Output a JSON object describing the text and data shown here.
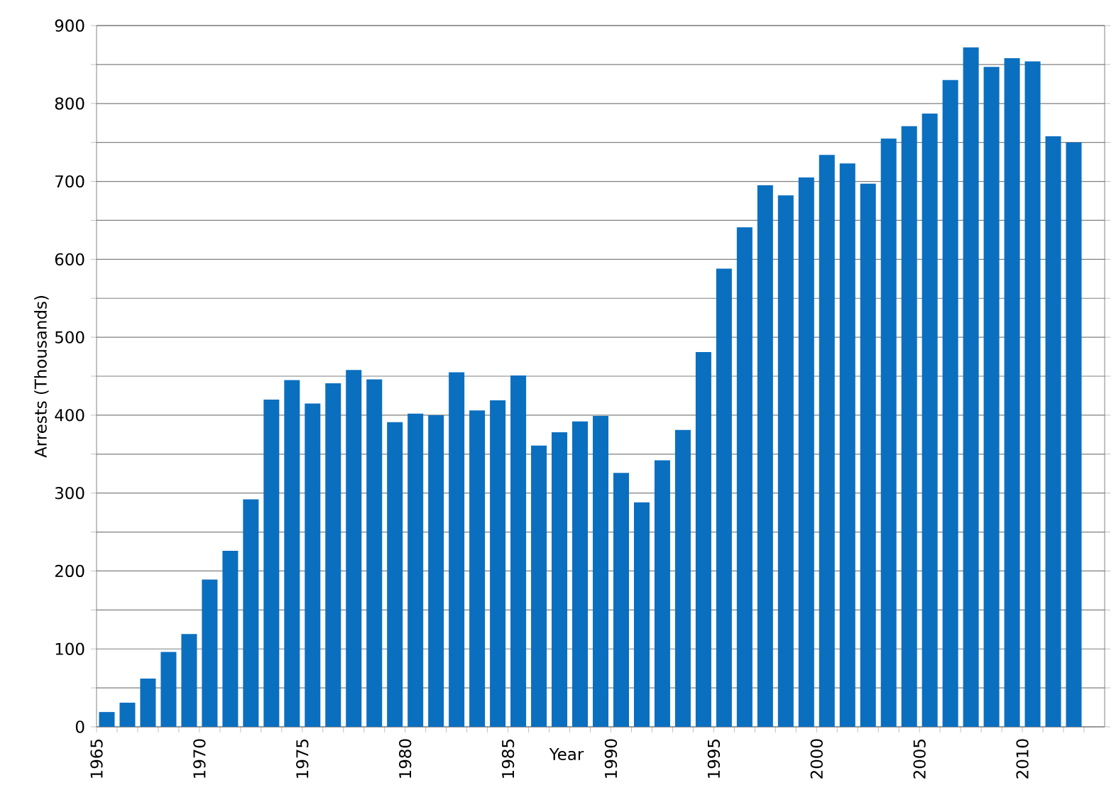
{
  "chart_data": {
    "type": "bar",
    "xlabel": "Year",
    "ylabel": "Arrests (Thousands)",
    "color": "#0b6fc0",
    "x": [
      1965,
      1966,
      1967,
      1968,
      1969,
      1970,
      1971,
      1972,
      1973,
      1974,
      1975,
      1976,
      1977,
      1978,
      1979,
      1980,
      1981,
      1982,
      1983,
      1984,
      1985,
      1986,
      1987,
      1988,
      1989,
      1990,
      1991,
      1992,
      1993,
      1994,
      1995,
      1996,
      1997,
      1998,
      1999,
      2000,
      2001,
      2002,
      2003,
      2004,
      2005,
      2006,
      2007,
      2008,
      2009,
      2010,
      2011,
      2012
    ],
    "values": [
      19,
      31,
      62,
      96,
      119,
      189,
      226,
      292,
      420,
      445,
      415,
      441,
      458,
      446,
      391,
      402,
      400,
      455,
      406,
      419,
      451,
      361,
      378,
      392,
      399,
      326,
      288,
      342,
      381,
      481,
      588,
      641,
      695,
      682,
      705,
      734,
      723,
      697,
      755,
      771,
      787,
      830,
      872,
      847,
      858,
      854,
      758,
      750
    ],
    "xlim": [
      1964.5,
      2013.5
    ],
    "xticks": [
      {
        "value": 1964.5,
        "label": "1965"
      },
      {
        "value": 1965.5,
        "label": null
      },
      {
        "value": 1966.5,
        "label": null
      },
      {
        "value": 1967.5,
        "label": null
      },
      {
        "value": 1968.5,
        "label": null
      },
      {
        "value": 1969.5,
        "label": "1970"
      },
      {
        "value": 1970.5,
        "label": null
      },
      {
        "value": 1971.5,
        "label": null
      },
      {
        "value": 1972.5,
        "label": null
      },
      {
        "value": 1973.5,
        "label": null
      },
      {
        "value": 1974.5,
        "label": "1975"
      },
      {
        "value": 1975.5,
        "label": null
      },
      {
        "value": 1976.5,
        "label": null
      },
      {
        "value": 1977.5,
        "label": null
      },
      {
        "value": 1978.5,
        "label": null
      },
      {
        "value": 1979.5,
        "label": "1980"
      },
      {
        "value": 1980.5,
        "label": null
      },
      {
        "value": 1981.5,
        "label": null
      },
      {
        "value": 1982.5,
        "label": null
      },
      {
        "value": 1983.5,
        "label": null
      },
      {
        "value": 1984.5,
        "label": "1985"
      },
      {
        "value": 1985.5,
        "label": null
      },
      {
        "value": 1986.5,
        "label": null
      },
      {
        "value": 1987.5,
        "label": null
      },
      {
        "value": 1988.5,
        "label": null
      },
      {
        "value": 1989.5,
        "label": "1990"
      },
      {
        "value": 1990.5,
        "label": null
      },
      {
        "value": 1991.5,
        "label": null
      },
      {
        "value": 1992.5,
        "label": null
      },
      {
        "value": 1993.5,
        "label": null
      },
      {
        "value": 1994.5,
        "label": "1995"
      },
      {
        "value": 1995.5,
        "label": null
      },
      {
        "value": 1996.5,
        "label": null
      },
      {
        "value": 1997.5,
        "label": null
      },
      {
        "value": 1998.5,
        "label": null
      },
      {
        "value": 1999.5,
        "label": "2000"
      },
      {
        "value": 2000.5,
        "label": null
      },
      {
        "value": 2001.5,
        "label": null
      },
      {
        "value": 2002.5,
        "label": null
      },
      {
        "value": 2003.5,
        "label": null
      },
      {
        "value": 2004.5,
        "label": "2005"
      },
      {
        "value": 2005.5,
        "label": null
      },
      {
        "value": 2006.5,
        "label": null
      },
      {
        "value": 2007.5,
        "label": null
      },
      {
        "value": 2008.5,
        "label": null
      },
      {
        "value": 2009.5,
        "label": "2010"
      },
      {
        "value": 2010.5,
        "label": null
      },
      {
        "value": 2011.5,
        "label": null
      },
      {
        "value": 2012.5,
        "label": null
      }
    ],
    "ylim": [
      0,
      900
    ],
    "yticks": [
      0,
      {
        "value": 50,
        "label": null
      },
      100,
      {
        "value": 150,
        "label": null
      },
      200,
      {
        "value": 250,
        "label": null
      },
      300,
      {
        "value": 350,
        "label": null
      },
      400,
      {
        "value": 450,
        "label": null
      },
      500,
      {
        "value": 550,
        "label": null
      },
      600,
      {
        "value": 650,
        "label": null
      },
      700,
      {
        "value": 750,
        "label": null
      },
      800,
      {
        "value": 850,
        "label": null
      },
      900
    ],
    "grid": "y"
  }
}
